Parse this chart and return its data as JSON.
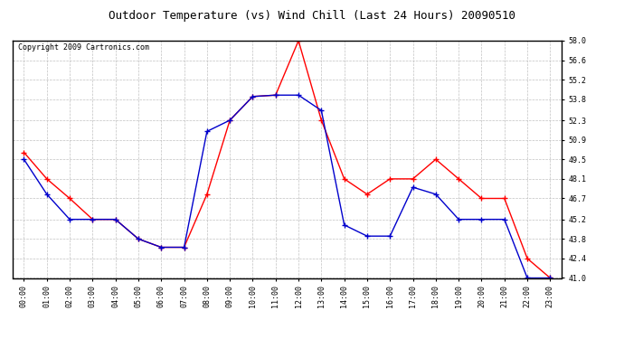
{
  "title": "Outdoor Temperature (vs) Wind Chill (Last 24 Hours) 20090510",
  "copyright": "Copyright 2009 Cartronics.com",
  "x_labels": [
    "00:00",
    "01:00",
    "02:00",
    "03:00",
    "04:00",
    "05:00",
    "06:00",
    "07:00",
    "08:00",
    "09:00",
    "10:00",
    "11:00",
    "12:00",
    "13:00",
    "14:00",
    "15:00",
    "16:00",
    "17:00",
    "18:00",
    "19:00",
    "20:00",
    "21:00",
    "22:00",
    "23:00"
  ],
  "red_data": [
    50.0,
    48.1,
    46.7,
    45.2,
    45.2,
    43.8,
    43.2,
    43.2,
    47.0,
    52.3,
    54.0,
    54.1,
    58.0,
    52.3,
    48.1,
    47.0,
    48.1,
    48.1,
    49.5,
    48.1,
    46.7,
    46.7,
    42.4,
    41.0
  ],
  "blue_data": [
    49.5,
    47.0,
    45.2,
    45.2,
    45.2,
    43.8,
    43.2,
    43.2,
    51.5,
    52.3,
    54.0,
    54.1,
    54.1,
    53.0,
    44.8,
    44.0,
    44.0,
    47.5,
    47.0,
    45.2,
    45.2,
    45.2,
    41.0,
    41.0
  ],
  "red_color": "#ff0000",
  "blue_color": "#0000cc",
  "ylim_min": 41.0,
  "ylim_max": 58.0,
  "yticks": [
    41.0,
    42.4,
    43.8,
    45.2,
    46.7,
    48.1,
    49.5,
    50.9,
    52.3,
    53.8,
    55.2,
    56.6,
    58.0
  ],
  "bg_color": "#ffffff",
  "grid_color": "#bbbbbb",
  "title_fontsize": 9,
  "copyright_fontsize": 6,
  "tick_fontsize": 6,
  "marker": "+"
}
